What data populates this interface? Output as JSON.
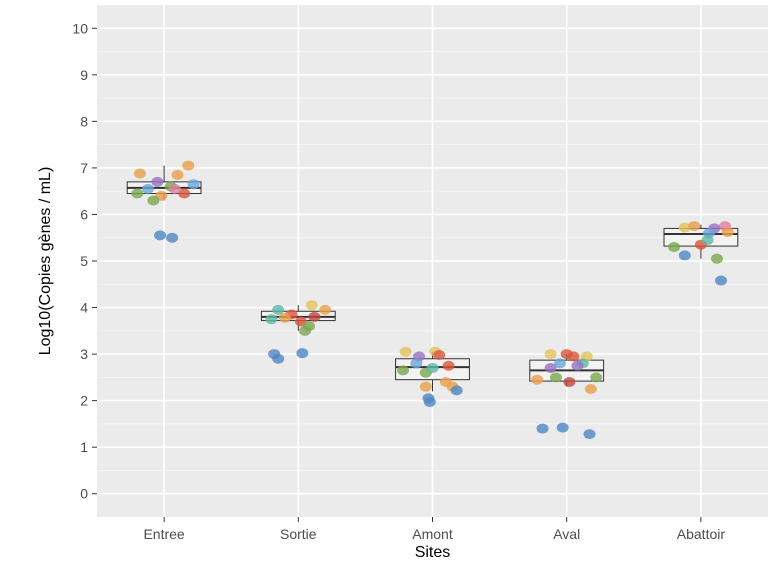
{
  "chart_data": {
    "type": "box",
    "xlabel": "Sites",
    "ylabel": "Log10(Copies gènes / mL)",
    "ylim": [
      -0.5,
      10.5
    ],
    "yticks": [
      0,
      1,
      2,
      3,
      4,
      5,
      6,
      7,
      8,
      9,
      10
    ],
    "categories": [
      "Entree",
      "Sortie",
      "Amont",
      "Aval",
      "Abattoir"
    ],
    "grid": true,
    "colors": {
      "panel": "#ebebeb",
      "grid_major": "#ffffff",
      "grid_minor": "#f7f7f7",
      "box_line": "#333333",
      "points": [
        "#e8a04a",
        "#d9553a",
        "#7aa84f",
        "#6aa5d8",
        "#9a6fc4",
        "#e6c25a",
        "#4f86c6",
        "#e07fa0",
        "#5fb8a8",
        "#c2453c"
      ]
    },
    "boxes": [
      {
        "category": "Entree",
        "whisker_low": 6.3,
        "q1": 6.45,
        "median": 6.57,
        "q3": 6.7,
        "whisker_high": 7.05,
        "points": [
          {
            "dx": -0.18,
            "y": 6.88,
            "c": 0
          },
          {
            "dx": 0.18,
            "y": 7.05,
            "c": 0
          },
          {
            "dx": 0.1,
            "y": 6.85,
            "c": 0
          },
          {
            "dx": -0.12,
            "y": 6.55,
            "c": 3
          },
          {
            "dx": -0.05,
            "y": 6.7,
            "c": 4
          },
          {
            "dx": 0.05,
            "y": 6.6,
            "c": 2
          },
          {
            "dx": 0.22,
            "y": 6.65,
            "c": 3
          },
          {
            "dx": -0.2,
            "y": 6.45,
            "c": 2
          },
          {
            "dx": 0.15,
            "y": 6.45,
            "c": 1
          },
          {
            "dx": -0.02,
            "y": 6.4,
            "c": 0
          },
          {
            "dx": 0.08,
            "y": 6.55,
            "c": 7
          },
          {
            "dx": -0.08,
            "y": 6.3,
            "c": 2
          },
          {
            "dx": -0.03,
            "y": 5.55,
            "c": 6
          },
          {
            "dx": 0.06,
            "y": 5.5,
            "c": 6
          }
        ]
      },
      {
        "category": "Sortie",
        "whisker_low": 3.5,
        "q1": 3.72,
        "median": 3.8,
        "q3": 3.92,
        "whisker_high": 4.05,
        "points": [
          {
            "dx": -0.15,
            "y": 3.95,
            "c": 8
          },
          {
            "dx": 0.1,
            "y": 4.05,
            "c": 5
          },
          {
            "dx": 0.2,
            "y": 3.95,
            "c": 0
          },
          {
            "dx": -0.2,
            "y": 3.75,
            "c": 8
          },
          {
            "dx": -0.05,
            "y": 3.85,
            "c": 1
          },
          {
            "dx": 0.02,
            "y": 3.7,
            "c": 1
          },
          {
            "dx": 0.12,
            "y": 3.8,
            "c": 9
          },
          {
            "dx": 0.08,
            "y": 3.6,
            "c": 2
          },
          {
            "dx": 0.05,
            "y": 3.5,
            "c": 2
          },
          {
            "dx": -0.1,
            "y": 3.78,
            "c": 0
          },
          {
            "dx": -0.18,
            "y": 3.0,
            "c": 6
          },
          {
            "dx": -0.15,
            "y": 2.9,
            "c": 6
          },
          {
            "dx": 0.03,
            "y": 3.02,
            "c": 6
          }
        ]
      },
      {
        "category": "Amont",
        "whisker_low": 2.2,
        "q1": 2.45,
        "median": 2.72,
        "q3": 2.9,
        "whisker_high": 3.05,
        "points": [
          {
            "dx": -0.2,
            "y": 3.05,
            "c": 5
          },
          {
            "dx": 0.02,
            "y": 3.05,
            "c": 5
          },
          {
            "dx": -0.1,
            "y": 2.95,
            "c": 4
          },
          {
            "dx": 0.05,
            "y": 2.98,
            "c": 1
          },
          {
            "dx": -0.22,
            "y": 2.65,
            "c": 2
          },
          {
            "dx": -0.05,
            "y": 2.6,
            "c": 2
          },
          {
            "dx": 0.0,
            "y": 2.7,
            "c": 8
          },
          {
            "dx": 0.12,
            "y": 2.75,
            "c": 1
          },
          {
            "dx": -0.12,
            "y": 2.8,
            "c": 3
          },
          {
            "dx": 0.1,
            "y": 2.4,
            "c": 0
          },
          {
            "dx": 0.15,
            "y": 2.3,
            "c": 0
          },
          {
            "dx": -0.05,
            "y": 2.3,
            "c": 0
          },
          {
            "dx": 0.18,
            "y": 2.22,
            "c": 6
          },
          {
            "dx": -0.03,
            "y": 2.05,
            "c": 6
          },
          {
            "dx": -0.02,
            "y": 1.97,
            "c": 6
          }
        ]
      },
      {
        "category": "Aval",
        "whisker_low": 2.3,
        "q1": 2.42,
        "median": 2.65,
        "q3": 2.87,
        "whisker_high": 3.0,
        "points": [
          {
            "dx": -0.12,
            "y": 3.0,
            "c": 5
          },
          {
            "dx": 0.0,
            "y": 3.0,
            "c": 1
          },
          {
            "dx": 0.05,
            "y": 2.95,
            "c": 1
          },
          {
            "dx": 0.15,
            "y": 2.95,
            "c": 5
          },
          {
            "dx": -0.05,
            "y": 2.8,
            "c": 3
          },
          {
            "dx": 0.12,
            "y": 2.8,
            "c": 8
          },
          {
            "dx": -0.12,
            "y": 2.7,
            "c": 4
          },
          {
            "dx": 0.08,
            "y": 2.75,
            "c": 4
          },
          {
            "dx": 0.22,
            "y": 2.5,
            "c": 2
          },
          {
            "dx": -0.22,
            "y": 2.45,
            "c": 0
          },
          {
            "dx": -0.08,
            "y": 2.5,
            "c": 2
          },
          {
            "dx": 0.02,
            "y": 2.4,
            "c": 9
          },
          {
            "dx": 0.18,
            "y": 2.25,
            "c": 0
          },
          {
            "dx": -0.18,
            "y": 1.4,
            "c": 6
          },
          {
            "dx": -0.03,
            "y": 1.42,
            "c": 6
          },
          {
            "dx": 0.17,
            "y": 1.28,
            "c": 6
          }
        ]
      },
      {
        "category": "Abattoir",
        "whisker_low": 5.05,
        "q1": 5.32,
        "median": 5.58,
        "q3": 5.7,
        "whisker_high": 5.78,
        "points": [
          {
            "dx": -0.12,
            "y": 5.72,
            "c": 5
          },
          {
            "dx": -0.05,
            "y": 5.75,
            "c": 0
          },
          {
            "dx": 0.18,
            "y": 5.75,
            "c": 7
          },
          {
            "dx": 0.1,
            "y": 5.7,
            "c": 4
          },
          {
            "dx": 0.2,
            "y": 5.62,
            "c": 0
          },
          {
            "dx": 0.06,
            "y": 5.6,
            "c": 3
          },
          {
            "dx": -0.2,
            "y": 5.3,
            "c": 2
          },
          {
            "dx": -0.12,
            "y": 5.12,
            "c": 6
          },
          {
            "dx": 0.0,
            "y": 5.35,
            "c": 1
          },
          {
            "dx": 0.05,
            "y": 5.45,
            "c": 8
          },
          {
            "dx": 0.12,
            "y": 5.05,
            "c": 2
          },
          {
            "dx": 0.15,
            "y": 4.58,
            "c": 6
          }
        ]
      }
    ]
  }
}
